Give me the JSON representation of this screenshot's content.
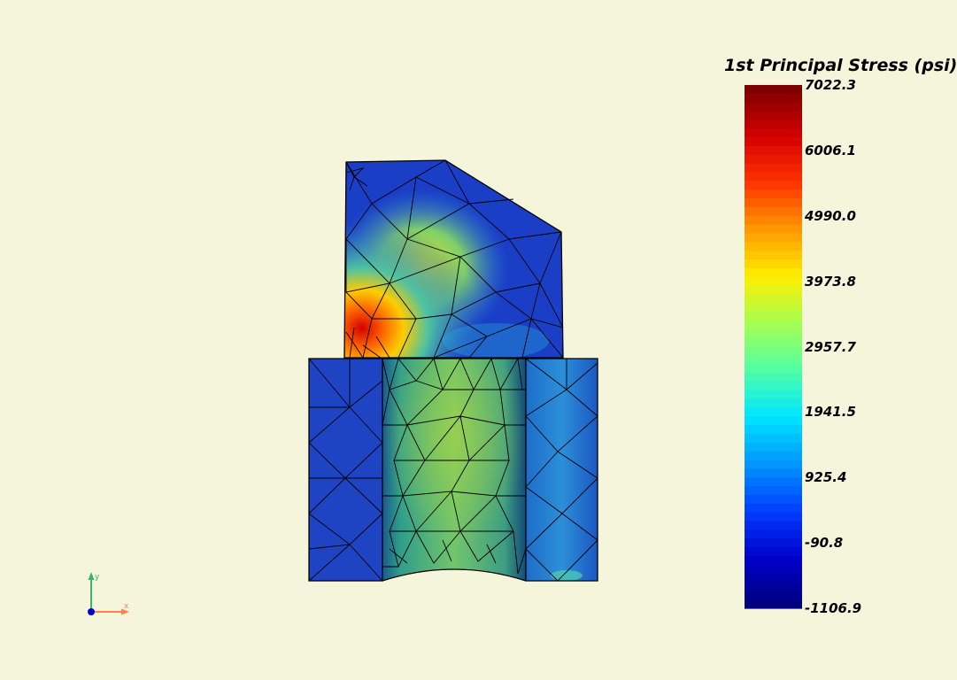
{
  "scalar_bar": {
    "title": "1st Principal Stress (psi)",
    "labels": [
      "7022.3",
      "6006.1",
      "4990.0",
      "3973.8",
      "2957.7",
      "1941.5",
      "925.4",
      "-90.8",
      "-1106.9"
    ],
    "colormap": [
      "#7f0000",
      "#d40000",
      "#ff3300",
      "#ff9900",
      "#ffee00",
      "#a5ff50",
      "#50ffa5",
      "#00e6ff",
      "#0096ff",
      "#0040ff",
      "#0000cd",
      "#000080"
    ]
  },
  "orientation_axes": {
    "x_label": "x",
    "y_label": "y",
    "x_color": "#ff7f50",
    "y_color": "#3cb371",
    "origin_color": "#0000cd"
  },
  "background_color": "#f5f5dc"
}
